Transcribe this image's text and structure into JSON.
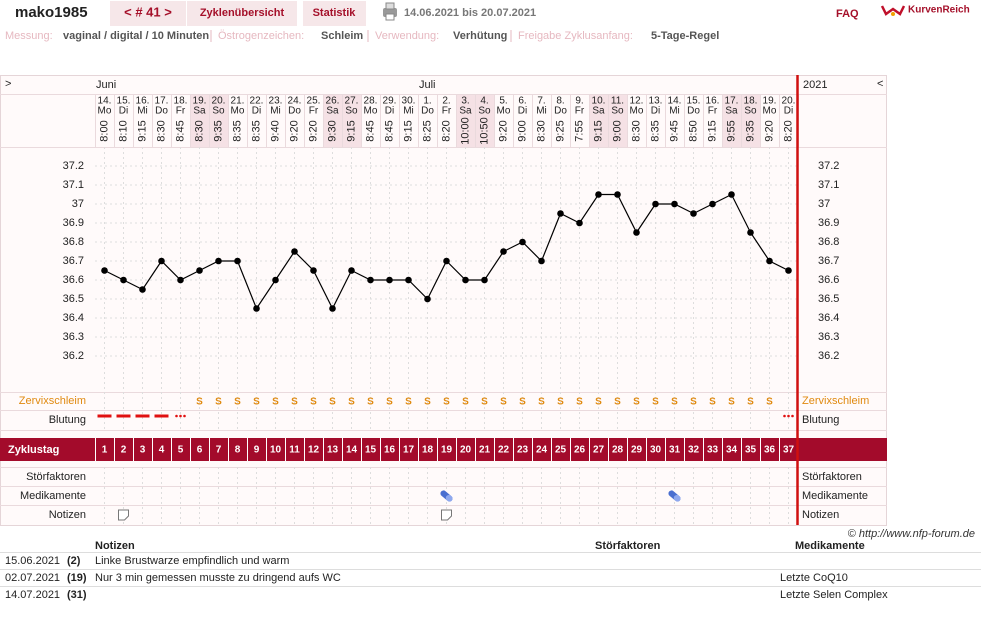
{
  "header": {
    "user": "mako1985",
    "cycle_nav": "< # 41 >",
    "tabs": [
      "Zyklenübersicht",
      "Statistik"
    ],
    "date_range": "14.06.2021 bis 20.07.2021",
    "faq": "FAQ",
    "logo": "KurvenReich"
  },
  "settings_line": [
    {
      "label": "Messung:",
      "value": "vaginal / digital / 10 Minuten"
    },
    {
      "label": "Östrogenzeichen:",
      "value": "Schleim"
    },
    {
      "label": "Verwendung:",
      "value": "Verhütung"
    },
    {
      "label": "Freigabe Zyklusanfang:",
      "value": "5-Tage-Regel"
    }
  ],
  "chart_data": {
    "type": "line",
    "year": "2021",
    "nav_left": ">",
    "nav_right": "<",
    "color": "#000000",
    "month_labels": [
      "Juni",
      null,
      null,
      null,
      null,
      null,
      null,
      null,
      null,
      null,
      null,
      null,
      null,
      null,
      null,
      null,
      null,
      "Juli",
      null,
      null,
      null,
      null,
      null,
      null,
      null,
      null,
      null,
      null,
      null,
      null,
      null,
      null,
      null,
      null,
      null,
      null,
      null
    ],
    "categories": [
      "14.",
      "15.",
      "16.",
      "17.",
      "18.",
      "19.",
      "20.",
      "21.",
      "22.",
      "23.",
      "24.",
      "25.",
      "26.",
      "27.",
      "28.",
      "29.",
      "30.",
      "1.",
      "2.",
      "3.",
      "4.",
      "5.",
      "6.",
      "7.",
      "8.",
      "9.",
      "10.",
      "11.",
      "12.",
      "13.",
      "14.",
      "15.",
      "16.",
      "17.",
      "18.",
      "19.",
      "20."
    ],
    "weekdays": [
      "Mo",
      "Di",
      "Mi",
      "Do",
      "Fr",
      "Sa",
      "So",
      "Mo",
      "Di",
      "Mi",
      "Do",
      "Fr",
      "Sa",
      "So",
      "Mo",
      "Di",
      "Mi",
      "Do",
      "Fr",
      "Sa",
      "So",
      "Mo",
      "Di",
      "Mi",
      "Do",
      "Fr",
      "Sa",
      "So",
      "Mo",
      "Di",
      "Mi",
      "Do",
      "Fr",
      "Sa",
      "So",
      "Mo",
      "Di"
    ],
    "times": [
      "8:00",
      "8:10",
      "9:15",
      "8:30",
      "8:45",
      "8:30",
      "9:35",
      "8:35",
      "8:35",
      "9:40",
      "9:20",
      "9:20",
      "9:30",
      "9:15",
      "8:45",
      "8:45",
      "9:15",
      "8:25",
      "8:20",
      "10:00",
      "10:50",
      "9:20",
      "9:00",
      "8:30",
      "9:25",
      "7:55",
      "9:15",
      "9:00",
      "8:30",
      "8:35",
      "9:45",
      "8:50",
      "9:15",
      "9:55",
      "9:35",
      "9:20",
      "8:20"
    ],
    "values": [
      36.65,
      36.6,
      36.55,
      36.7,
      36.6,
      36.65,
      36.7,
      36.7,
      36.45,
      36.6,
      36.75,
      36.65,
      36.45,
      36.65,
      36.6,
      36.6,
      36.6,
      36.5,
      36.7,
      36.6,
      36.6,
      36.75,
      36.8,
      36.7,
      36.95,
      36.9,
      37.05,
      37.05,
      36.85,
      37.0,
      37.0,
      36.95,
      37.0,
      37.05,
      36.85,
      36.7,
      36.65
    ],
    "ylim": [
      36.1,
      37.3
    ],
    "yticks": [
      37.2,
      37.1,
      37,
      36.9,
      36.8,
      36.7,
      36.6,
      36.5,
      36.4,
      36.3,
      36.2
    ],
    "grid": true,
    "row_labels": {
      "cervix": "Zervixschleim",
      "bleeding": "Blutung",
      "cycle_day": "Zyklustag",
      "disturbance": "Störfaktoren",
      "medication": "Medikamente",
      "notes": "Notizen"
    },
    "cervix": [
      null,
      null,
      null,
      null,
      null,
      "S",
      "S",
      "S",
      "S",
      "S",
      "S",
      "S",
      "S",
      "S",
      "S",
      "S",
      "S",
      "S",
      "S",
      "S",
      "S",
      "S",
      "S",
      "S",
      "S",
      "S",
      "S",
      "S",
      "S",
      "S",
      "S",
      "S",
      "S",
      "S",
      "S",
      "S",
      null
    ],
    "bleeding": [
      "stark",
      "stark",
      "stark",
      "stark",
      "schwach",
      null,
      null,
      null,
      null,
      null,
      null,
      null,
      null,
      null,
      null,
      null,
      null,
      null,
      null,
      null,
      null,
      null,
      null,
      null,
      null,
      null,
      null,
      null,
      null,
      null,
      null,
      null,
      null,
      null,
      null,
      null,
      "schwach"
    ],
    "cycle_days": [
      1,
      2,
      3,
      4,
      5,
      6,
      7,
      8,
      9,
      10,
      11,
      12,
      13,
      14,
      15,
      16,
      17,
      18,
      19,
      20,
      21,
      22,
      23,
      24,
      25,
      26,
      27,
      28,
      29,
      30,
      31,
      32,
      33,
      34,
      35,
      36,
      37
    ],
    "medication_days": [
      19,
      31
    ],
    "note_days": [
      2,
      19
    ]
  },
  "copyright": "© http://www.nfp-forum.de",
  "notes_table": {
    "headers": [
      "Notizen",
      "Störfaktoren",
      "Medikamente"
    ],
    "rows": [
      [
        "15.06.2021",
        "(2)",
        "Linke Brustwarze empfindlich und warm",
        null
      ],
      [
        "02.07.2021",
        "(19)",
        "Nur 3 min gemessen musste zu dringend aufs WC",
        "Letzte CoQ10"
      ],
      [
        "14.07.2021",
        "(31)",
        null,
        "Letzte Selen Complex"
      ]
    ]
  }
}
